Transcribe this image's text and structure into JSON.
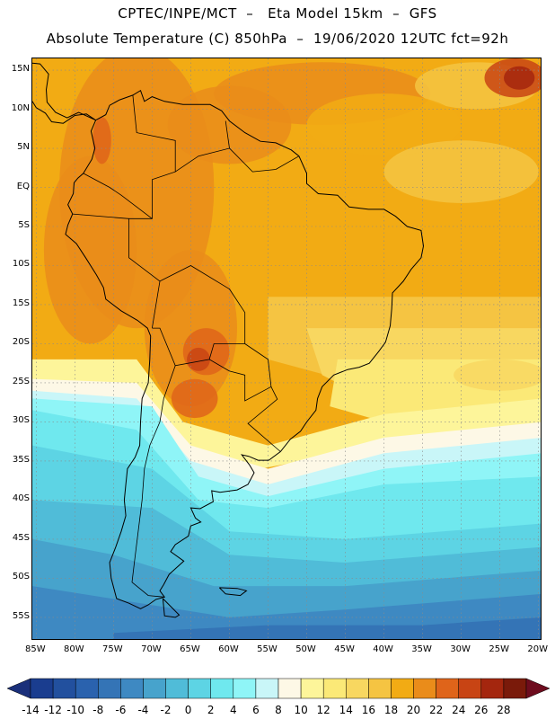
{
  "header": {
    "line1": "CPTEC/INPE/MCT  –   Eta Model 15km  –  GFS",
    "line2": "Absolute Temperature (C) 850hPa  –  19/06/2020 12UTC fct=92h"
  },
  "map": {
    "lat_labels": [
      "15N",
      "10N",
      "5N",
      "EQ",
      "5S",
      "10S",
      "15S",
      "20S",
      "25S",
      "30S",
      "35S",
      "40S",
      "45S",
      "50S",
      "55S"
    ],
    "lon_labels": [
      "85W",
      "80W",
      "75W",
      "70W",
      "65W",
      "60W",
      "55W",
      "50W",
      "45W",
      "40W",
      "35W",
      "30W",
      "25W",
      "20W"
    ],
    "extent": {
      "lon_min": -85.5,
      "lon_max": -19.5,
      "lat_min": -58,
      "lat_max": 16.5
    }
  },
  "colorbar": {
    "levels": [
      "-14",
      "-12",
      "-10",
      "-8",
      "-6",
      "-4",
      "-2",
      "0",
      "2",
      "4",
      "6",
      "8",
      "10",
      "12",
      "14",
      "16",
      "18",
      "20",
      "22",
      "24",
      "26",
      "28"
    ],
    "colors": [
      "#1a3d8f",
      "#22509e",
      "#2a62ae",
      "#3474b6",
      "#3e89c2",
      "#47a3cc",
      "#50bcd8",
      "#5dd4e4",
      "#6fe8ee",
      "#8ff5f7",
      "#c9f6f8",
      "#fdf8e6",
      "#fdf59a",
      "#fbe977",
      "#f8d760",
      "#f5c442",
      "#f2ab14",
      "#ea8c1a",
      "#df641a",
      "#c84414",
      "#a4260e",
      "#7a1a0a"
    ],
    "under_color": "#1a2f7a",
    "over_color": "#6e0c1e"
  }
}
